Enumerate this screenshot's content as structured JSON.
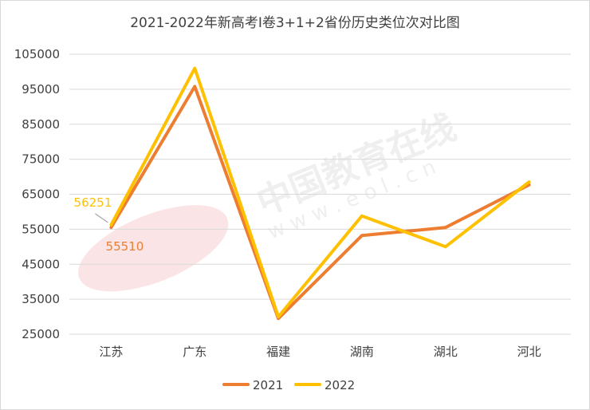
{
  "chart_data": {
    "type": "line",
    "title": "2021-2022年新高考Ⅰ卷3+1+2省份历史类位次对比图",
    "categories": [
      "江苏",
      "广东",
      "福建",
      "湖南",
      "湖北",
      "河北"
    ],
    "series": [
      {
        "name": "2021",
        "color": "#ED7D31",
        "values": [
          55510,
          95800,
          29500,
          53200,
          55500,
          67700
        ]
      },
      {
        "name": "2022",
        "color": "#FFC000",
        "values": [
          56251,
          101000,
          30000,
          58800,
          50000,
          68500
        ]
      }
    ],
    "ylim": [
      25000,
      105000
    ],
    "yticks": [
      "105000",
      "95000",
      "85000",
      "75000",
      "65000",
      "55000",
      "45000",
      "35000",
      "25000"
    ],
    "grid": true,
    "legend_position": "bottom",
    "data_labels": [
      {
        "series": "2022",
        "category": "江苏",
        "text": "56251"
      },
      {
        "series": "2021",
        "category": "江苏",
        "text": "55510"
      }
    ],
    "watermark": {
      "text": "中国教育在线",
      "sub": "w w w . e o l . c n"
    }
  }
}
